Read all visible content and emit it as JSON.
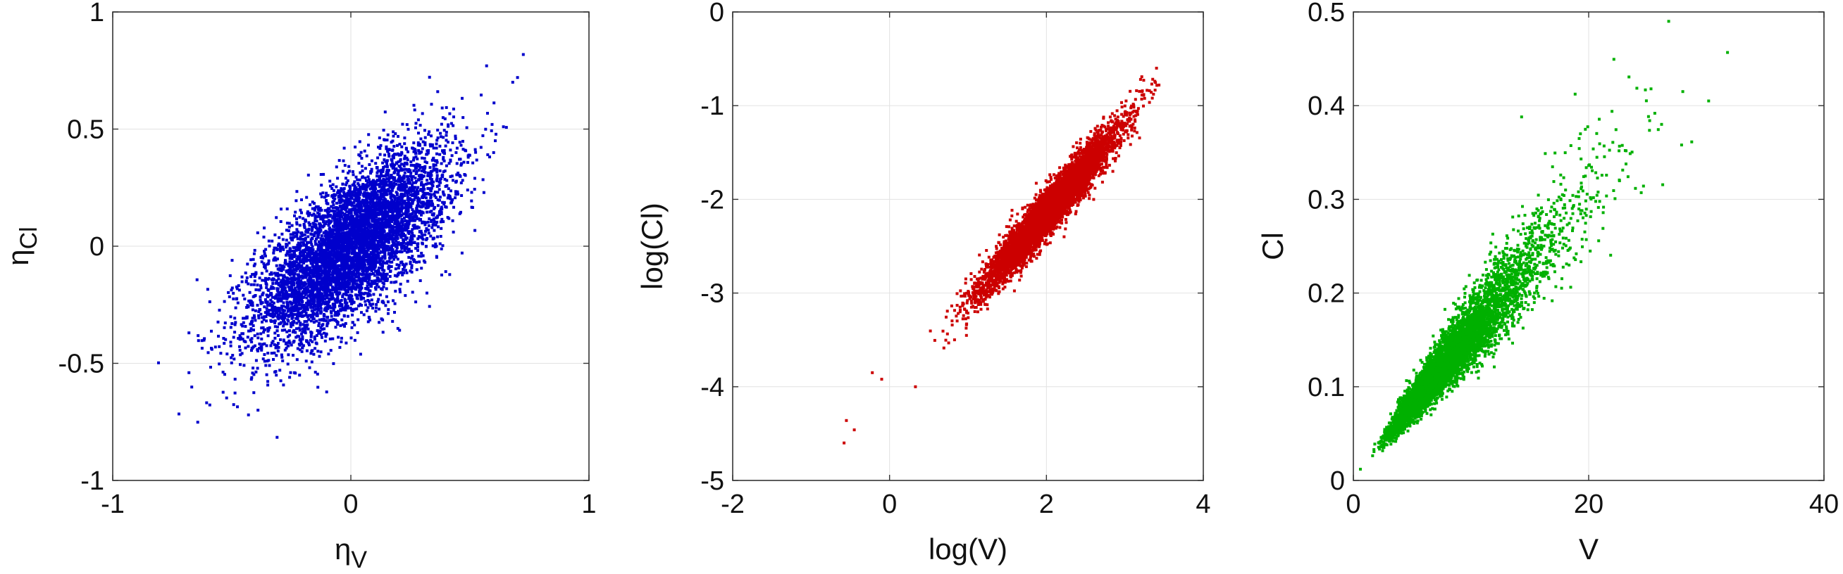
{
  "chart_data": [
    {
      "type": "scatter",
      "title": "",
      "xlabel": "η",
      "xlabel_sub": "V",
      "ylabel": "η",
      "ylabel_sub": "Cl",
      "xlim": [
        -1,
        1
      ],
      "ylim": [
        -1,
        1
      ],
      "xticks": [
        -1,
        0,
        1
      ],
      "yticks": [
        -1,
        -0.5,
        0,
        0.5,
        1
      ],
      "xticklabels": [
        "-1",
        "0",
        "1"
      ],
      "yticklabels": [
        "-1",
        "-0.5",
        "0",
        "0.5",
        "1"
      ],
      "grid": true,
      "color": "#0000cc",
      "points": {
        "n": 6000,
        "distribution": "bivariate normal",
        "x_mean": 0.0,
        "x_sd": 0.2,
        "y_mean": 0.0,
        "y_sd": 0.2,
        "correlation": 0.7
      },
      "notable_points": [
        [
          0.57,
          0.77
        ],
        [
          0.7,
          0.72
        ],
        [
          0.68,
          0.7
        ],
        [
          -0.68,
          -0.37
        ],
        [
          -0.68,
          -0.54
        ],
        [
          -0.43,
          -0.72
        ],
        [
          -0.39,
          -0.7
        ]
      ]
    },
    {
      "type": "scatter",
      "title": "",
      "xlabel": "log(V)",
      "ylabel": "log(Cl)",
      "xlim": [
        -2,
        4
      ],
      "ylim": [
        -5,
        0
      ],
      "xticks": [
        -2,
        0,
        2,
        4
      ],
      "yticks": [
        -5,
        -4,
        -3,
        -2,
        -1,
        0
      ],
      "xticklabels": [
        "-2",
        "0",
        "2",
        "4"
      ],
      "yticklabels": [
        "-5",
        "-4",
        "-3",
        "-2",
        "-1",
        "0"
      ],
      "grid": true,
      "color": "#cc0000",
      "points": {
        "n": 6000,
        "distribution": "bivariate normal",
        "x_mean": 2.05,
        "x_sd": 0.42,
        "y_mean": -2.1,
        "y_sd": 0.42,
        "correlation": 0.96
      },
      "notable_points": [
        [
          -0.58,
          -4.6
        ],
        [
          -0.55,
          -4.36
        ],
        [
          -0.45,
          -4.46
        ],
        [
          -0.22,
          -3.85
        ],
        [
          -0.1,
          -3.92
        ],
        [
          0.33,
          -4.0
        ],
        [
          3.35,
          -0.92
        ],
        [
          3.2,
          -0.72
        ]
      ]
    },
    {
      "type": "scatter",
      "title": "",
      "xlabel": "V",
      "ylabel": "Cl",
      "xlim": [
        0,
        40
      ],
      "ylim": [
        0,
        0.5
      ],
      "xticks": [
        0,
        20,
        40
      ],
      "yticks": [
        0,
        0.1,
        0.2,
        0.3,
        0.4,
        0.5
      ],
      "xticklabels": [
        "0",
        "20",
        "40"
      ],
      "yticklabels": [
        "0",
        "0.1",
        "0.2",
        "0.3",
        "0.4",
        "0.5"
      ],
      "grid": true,
      "color": "#00b000",
      "points": {
        "n": 6000,
        "distribution": "exponential of bivariate normal",
        "log_x_mean": 2.05,
        "log_x_sd": 0.42,
        "log_y_mean": -2.1,
        "log_y_sd": 0.42,
        "correlation": 0.96
      },
      "notable_points": [
        [
          26.8,
          0.49
        ],
        [
          28.0,
          0.415
        ],
        [
          30.2,
          0.405
        ],
        [
          27.9,
          0.358
        ],
        [
          14.3,
          0.388
        ],
        [
          26.2,
          0.38
        ],
        [
          19.3,
          0.37
        ],
        [
          0.6,
          0.012
        ]
      ]
    }
  ]
}
